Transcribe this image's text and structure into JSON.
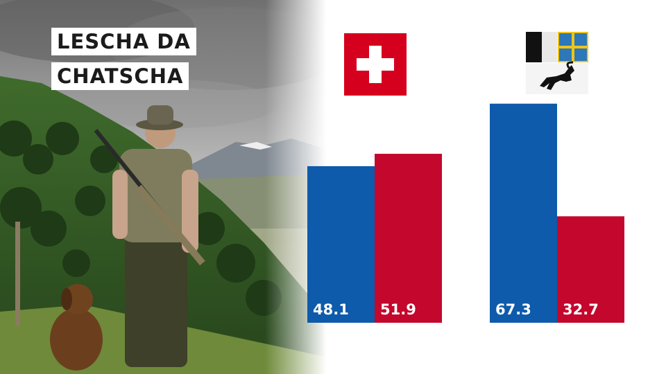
{
  "title": {
    "line1": "LESCHA DA",
    "line2": "CHATSCHA"
  },
  "icons": {
    "left_flag": "swiss-flag-icon",
    "right_flag": "graubuenden-coat-of-arms-icon"
  },
  "colors": {
    "blue": "#0e5aab",
    "red": "#c4072c"
  },
  "chart_data": [
    {
      "type": "bar",
      "group_icon": "swiss-flag-icon",
      "values": [
        48.1,
        51.9
      ],
      "labels": [
        "48.1",
        "51.9"
      ],
      "colors": [
        "#0e5aab",
        "#c4072c"
      ],
      "ylim": [
        0,
        100
      ]
    },
    {
      "type": "bar",
      "group_icon": "graubuenden-coat-of-arms-icon",
      "values": [
        67.3,
        32.7
      ],
      "labels": [
        "67.3",
        "32.7"
      ],
      "colors": [
        "#0e5aab",
        "#c4072c"
      ],
      "ylim": [
        0,
        100
      ]
    }
  ]
}
